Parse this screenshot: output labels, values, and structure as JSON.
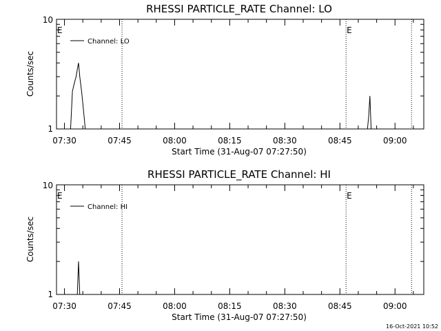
{
  "chart_data": [
    {
      "type": "line",
      "title": "RHESSI PARTICLE_RATE Channel: LO",
      "xlabel": "Start Time (31-Aug-07 07:27:50)",
      "ylabel": "Counts/sec",
      "x_tick_labels": [
        "07:30",
        "07:45",
        "08:00",
        "08:15",
        "08:30",
        "08:45",
        "09:00"
      ],
      "xlim": [
        "07:27:50",
        "09:07:50"
      ],
      "y_scale": "log",
      "ylim": [
        1,
        10
      ],
      "y_tick_labels": [
        "1",
        "10"
      ],
      "legend": {
        "entries": [
          "Channel: LO"
        ],
        "placement": "top-left"
      },
      "markers": [
        {
          "time": "07:27:50",
          "label": "E",
          "line": false
        },
        {
          "time": "07:45:40",
          "label": "",
          "line": true
        },
        {
          "time": "08:46:40",
          "label": "E",
          "line": true
        },
        {
          "time": "09:04:30",
          "label": "",
          "line": true
        }
      ],
      "series": [
        {
          "name": "Channel: LO",
          "x": [
            "07:31:40",
            "07:32:10",
            "07:32:40",
            "07:33:10",
            "07:33:30",
            "07:33:50",
            "07:34:10",
            "07:34:40",
            "07:35:10",
            "07:35:40",
            "08:52:30",
            "08:52:50",
            "08:53:10",
            "08:53:30"
          ],
          "y": [
            1,
            2.2,
            2.6,
            3.0,
            3.5,
            4.0,
            3.0,
            2.2,
            1.5,
            1,
            1,
            1.3,
            2.0,
            1
          ]
        }
      ]
    },
    {
      "type": "line",
      "title": "RHESSI PARTICLE_RATE Channel: HI",
      "xlabel": "Start Time (31-Aug-07 07:27:50)",
      "ylabel": "Counts/sec",
      "x_tick_labels": [
        "07:30",
        "07:45",
        "08:00",
        "08:15",
        "08:30",
        "08:45",
        "09:00"
      ],
      "xlim": [
        "07:27:50",
        "09:07:50"
      ],
      "y_scale": "log",
      "ylim": [
        1,
        10
      ],
      "y_tick_labels": [
        "1",
        "10"
      ],
      "legend": {
        "entries": [
          "Channel: HI"
        ],
        "placement": "top-left"
      },
      "markers": [
        {
          "time": "07:27:50",
          "label": "E",
          "line": false
        },
        {
          "time": "07:45:40",
          "label": "",
          "line": true
        },
        {
          "time": "08:46:40",
          "label": "E",
          "line": true
        },
        {
          "time": "09:04:30",
          "label": "",
          "line": true
        }
      ],
      "series": [
        {
          "name": "Channel: HI",
          "x": [
            "07:33:30",
            "07:33:50",
            "07:34:10"
          ],
          "y": [
            1,
            2.0,
            1
          ]
        }
      ]
    }
  ],
  "footer": {
    "timestamp": "16-Oct-2021 10:52"
  }
}
